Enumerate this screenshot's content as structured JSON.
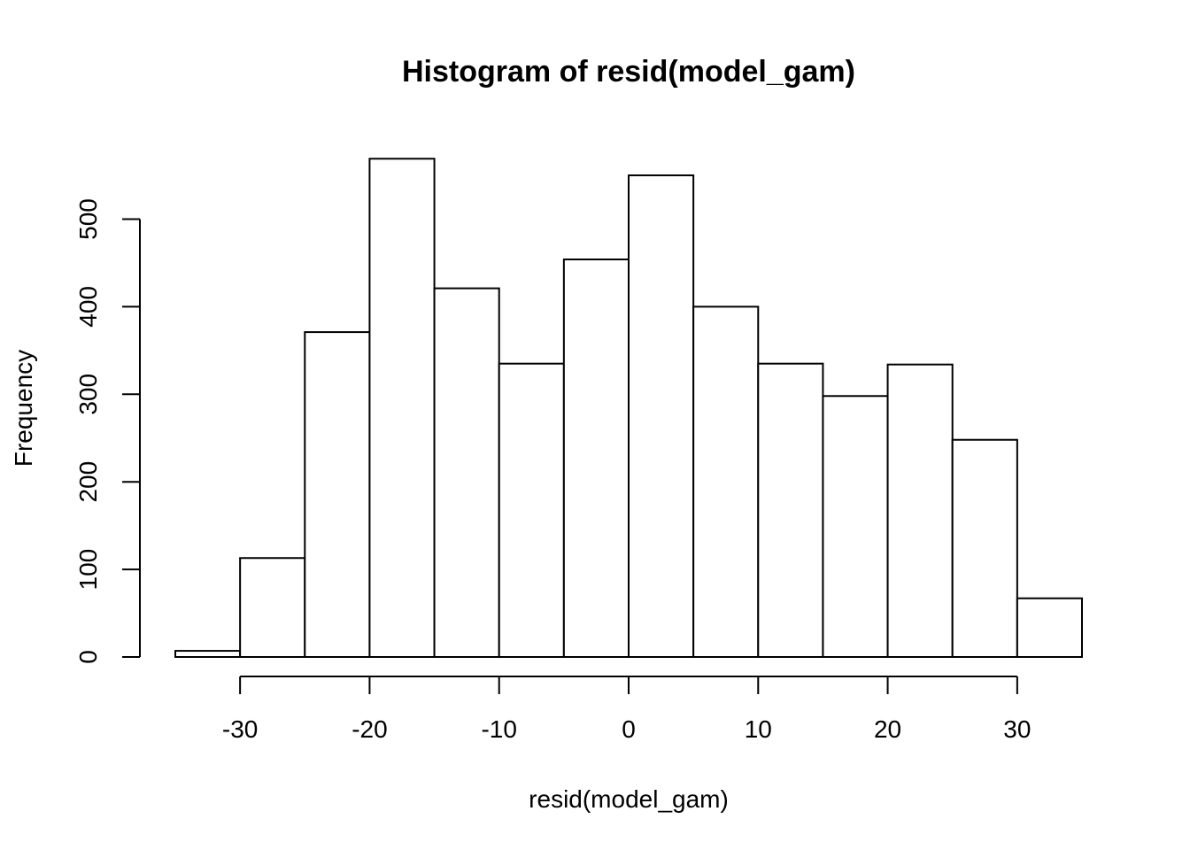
{
  "chart_data": {
    "type": "bar",
    "title": "Histogram of resid(model_gam)",
    "xlabel": "resid(model_gam)",
    "ylabel": "Frequency",
    "bins": [
      {
        "from": -35,
        "to": -30,
        "count": 7
      },
      {
        "from": -30,
        "to": -25,
        "count": 113
      },
      {
        "from": -25,
        "to": -20,
        "count": 371
      },
      {
        "from": -20,
        "to": -15,
        "count": 569
      },
      {
        "from": -15,
        "to": -10,
        "count": 421
      },
      {
        "from": -10,
        "to": -5,
        "count": 335
      },
      {
        "from": -5,
        "to": 0,
        "count": 454
      },
      {
        "from": 0,
        "to": 5,
        "count": 550
      },
      {
        "from": 5,
        "to": 10,
        "count": 400
      },
      {
        "from": 10,
        "to": 15,
        "count": 335
      },
      {
        "from": 15,
        "to": 20,
        "count": 298
      },
      {
        "from": 20,
        "to": 25,
        "count": 334
      },
      {
        "from": 25,
        "to": 30,
        "count": 248
      },
      {
        "from": 30,
        "to": 35,
        "count": 67
      }
    ],
    "xticks": [
      "-30",
      "-20",
      "-10",
      "0",
      "10",
      "20",
      "30"
    ],
    "xtick_values": [
      -30,
      -20,
      -10,
      0,
      10,
      20,
      30
    ],
    "yticks": [
      "0",
      "100",
      "200",
      "300",
      "400",
      "500"
    ],
    "ytick_values": [
      0,
      100,
      200,
      300,
      400,
      500
    ],
    "xlim": [
      -35,
      35
    ],
    "ylim": [
      0,
      569
    ],
    "grid": false,
    "legend": "none",
    "colors": {
      "bar_fill": "#ffffff",
      "bar_stroke": "#000000"
    }
  }
}
